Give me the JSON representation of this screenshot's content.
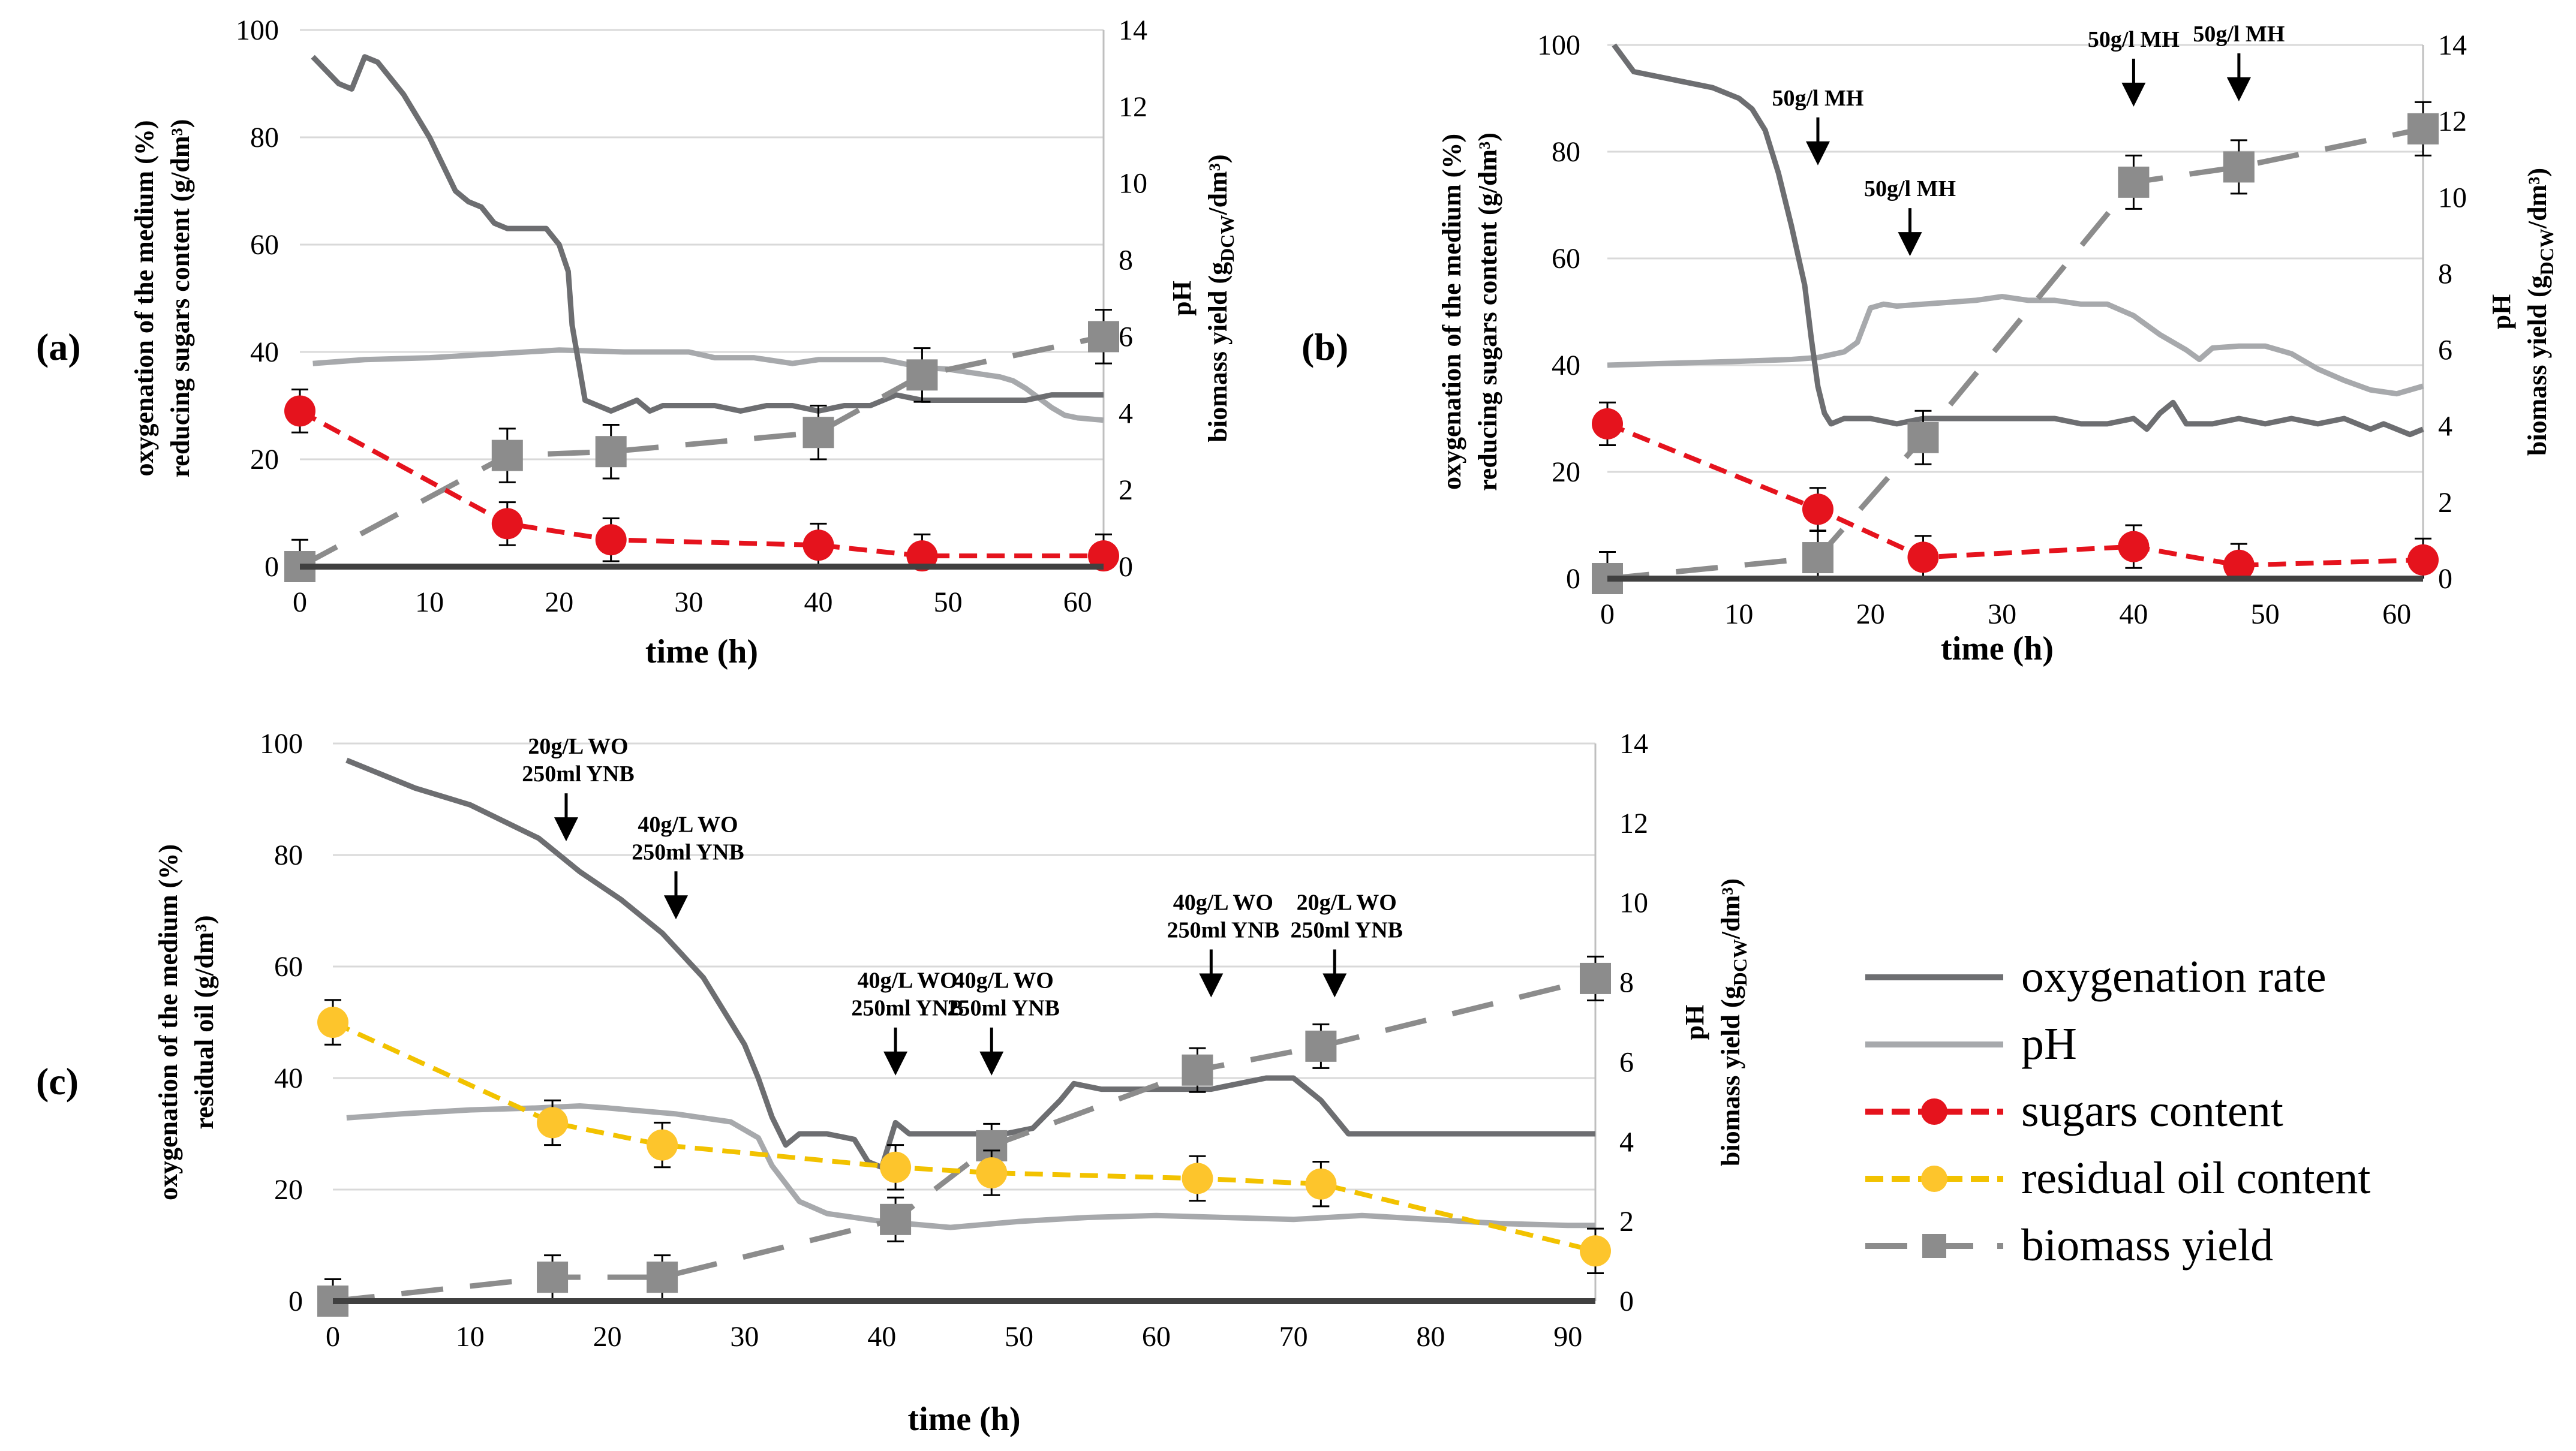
{
  "colors": {
    "oxygenation": "#6d6e71",
    "ph": "#a7a9ac",
    "sugars": "#e5131d",
    "oil": "#fdc52c",
    "oil_line": "#f2c200",
    "biomass": "#8c8c8c",
    "grid": "#d9d9d9"
  },
  "legend": {
    "items": [
      {
        "key": "oxygenation",
        "label": "oxygenation rate"
      },
      {
        "key": "ph",
        "label": "pH"
      },
      {
        "key": "sugars",
        "label": "sugars content"
      },
      {
        "key": "oil",
        "label": "residual oil content"
      },
      {
        "key": "biomass",
        "label": "biomass yield"
      }
    ]
  },
  "chart_data": [
    {
      "panel": "(a)",
      "type": "line",
      "xlabel": "time (h)",
      "ylabel_left": [
        "oxygenation of the medium (%)",
        "reducing sugars content (g/dm³)"
      ],
      "ylabel_right": [
        "pH",
        "biomass yield (g",
        "DCW",
        "/dm³)"
      ],
      "xlim": [
        0,
        62
      ],
      "ylim_left": [
        0,
        100
      ],
      "ylim_right": [
        0,
        14
      ],
      "xticks": [
        0,
        10,
        20,
        30,
        40,
        50,
        60
      ],
      "yticks_left": [
        0,
        20,
        40,
        60,
        80,
        100
      ],
      "yticks_right": [
        0,
        2,
        4,
        6,
        8,
        10,
        12,
        14
      ],
      "series": [
        {
          "name": "oxygenation rate",
          "key": "oxygenation",
          "axis": "left",
          "x": [
            1,
            3,
            4,
            5,
            6,
            8,
            10,
            12,
            13,
            14,
            15,
            16,
            17,
            18,
            19,
            20,
            20.7,
            21,
            21.5,
            22,
            23,
            24,
            25,
            26,
            27,
            28,
            30,
            32,
            34,
            36,
            38,
            40,
            42,
            44,
            46,
            48,
            50,
            52,
            54,
            56,
            58,
            60,
            62
          ],
          "y": [
            95,
            90,
            89,
            95,
            94,
            88,
            80,
            70,
            68,
            67,
            64,
            63,
            63,
            63,
            63,
            60,
            55,
            45,
            38,
            31,
            30,
            29,
            30,
            31,
            29,
            30,
            30,
            30,
            29,
            30,
            30,
            29,
            30,
            30,
            32,
            31,
            31,
            31,
            31,
            31,
            32,
            32,
            32
          ]
        },
        {
          "name": "pH",
          "key": "ph",
          "axis": "right",
          "x": [
            1,
            5,
            10,
            15,
            20,
            25,
            30,
            32,
            35,
            38,
            40,
            45,
            48,
            50,
            52,
            54,
            55,
            56,
            57,
            58,
            59,
            60,
            62
          ],
          "y": [
            5.3,
            5.4,
            5.45,
            5.55,
            5.65,
            5.6,
            5.6,
            5.45,
            5.45,
            5.3,
            5.4,
            5.4,
            5.2,
            5.15,
            5.05,
            4.95,
            4.85,
            4.65,
            4.4,
            4.15,
            3.95,
            3.88,
            3.82
          ]
        },
        {
          "name": "sugars content",
          "key": "sugars",
          "axis": "left",
          "markers": "circle",
          "x": [
            0,
            16,
            24,
            40,
            48,
            62
          ],
          "y": [
            29,
            8,
            5,
            4,
            2,
            2
          ],
          "err": [
            4,
            4,
            4,
            4,
            4,
            4
          ]
        },
        {
          "name": "biomass yield",
          "key": "biomass",
          "axis": "right",
          "markers": "square",
          "x": [
            0,
            16,
            24,
            40,
            48,
            62
          ],
          "y": [
            0,
            2.9,
            3.0,
            3.5,
            5.0,
            6.0
          ],
          "err": [
            0.7,
            0.7,
            0.7,
            0.7,
            0.7,
            0.7
          ]
        }
      ],
      "annotations": []
    },
    {
      "panel": "(b)",
      "type": "line",
      "xlabel": "time (h)",
      "ylabel_left": [
        "oxygenation of the medium (%)",
        "reducing sugars content (g/dm³)"
      ],
      "ylabel_right": [
        "pH",
        "biomass yield (g",
        "DCW",
        "/dm³)"
      ],
      "xlim": [
        0,
        62
      ],
      "ylim_left": [
        0,
        100
      ],
      "ylim_right": [
        0,
        14
      ],
      "xticks": [
        0,
        10,
        20,
        30,
        40,
        50,
        60
      ],
      "yticks_left": [
        0,
        20,
        40,
        60,
        80,
        100
      ],
      "yticks_right": [
        0,
        2,
        4,
        6,
        8,
        10,
        12,
        14
      ],
      "series": [
        {
          "name": "oxygenation rate",
          "key": "oxygenation",
          "axis": "left",
          "x": [
            0.5,
            2,
            4,
            6,
            8,
            10,
            11,
            12,
            13,
            14,
            15,
            15.5,
            16,
            16.5,
            17,
            18,
            20,
            22,
            24,
            26,
            28,
            30,
            32,
            34,
            36,
            38,
            40,
            41,
            42,
            43,
            44,
            46,
            48,
            50,
            52,
            54,
            56,
            58,
            59,
            60,
            61,
            62
          ],
          "y": [
            100,
            95,
            94,
            93,
            92,
            90,
            88,
            84,
            76,
            66,
            55,
            45,
            36,
            31,
            29,
            30,
            30,
            29,
            30,
            30,
            30,
            30,
            30,
            30,
            29,
            29,
            30,
            28,
            31,
            33,
            29,
            29,
            30,
            29,
            30,
            29,
            30,
            28,
            29,
            28,
            27,
            28
          ]
        },
        {
          "name": "pH",
          "key": "ph",
          "axis": "right",
          "x": [
            0,
            5,
            10,
            14,
            16,
            18,
            19,
            20,
            21,
            22,
            24,
            26,
            28,
            30,
            32,
            34,
            36,
            38,
            40,
            42,
            44,
            45,
            46,
            48,
            50,
            52,
            54,
            56,
            58,
            60,
            62
          ],
          "y": [
            5.6,
            5.65,
            5.7,
            5.75,
            5.8,
            5.95,
            6.2,
            7.1,
            7.2,
            7.15,
            7.2,
            7.25,
            7.3,
            7.4,
            7.3,
            7.3,
            7.2,
            7.2,
            6.9,
            6.4,
            6.0,
            5.75,
            6.05,
            6.1,
            6.1,
            5.9,
            5.5,
            5.2,
            4.95,
            4.85,
            5.05
          ]
        },
        {
          "name": "sugars content",
          "key": "sugars",
          "axis": "left",
          "markers": "circle",
          "x": [
            0,
            16,
            24,
            40,
            48,
            62
          ],
          "y": [
            29,
            13,
            4,
            6,
            2.5,
            3.5
          ],
          "err": [
            4,
            4,
            4,
            4,
            4,
            4
          ]
        },
        {
          "name": "biomass yield",
          "key": "biomass",
          "axis": "right",
          "markers": "square",
          "x": [
            0,
            16,
            24,
            40,
            48,
            62
          ],
          "y": [
            0,
            0.55,
            3.7,
            10.4,
            10.8,
            11.8
          ],
          "err": [
            0.7,
            0.7,
            0.7,
            0.7,
            0.7,
            0.7
          ]
        }
      ],
      "annotations": [
        {
          "x": 16,
          "y": 78,
          "text": [
            "50g/l MH"
          ]
        },
        {
          "x": 23,
          "y": 61,
          "text": [
            "50g/l MH"
          ]
        },
        {
          "x": 40,
          "y": 89,
          "text": [
            "50g/l MH"
          ]
        },
        {
          "x": 48,
          "y": 90,
          "text": [
            "50g/l MH"
          ]
        }
      ]
    },
    {
      "panel": "(c)",
      "type": "line",
      "xlabel": "time (h)",
      "ylabel_left": [
        "oxygenation of the medium (%)",
        "residual oil (g/dm³)"
      ],
      "ylabel_right": [
        "pH",
        "biomass yield (g",
        "DCW",
        "/dm³)"
      ],
      "xlim": [
        0,
        92
      ],
      "ylim_left": [
        0,
        100
      ],
      "ylim_right": [
        0,
        14
      ],
      "xticks": [
        0,
        10,
        20,
        30,
        40,
        50,
        60,
        70,
        80,
        90
      ],
      "yticks_left": [
        0,
        20,
        40,
        60,
        80,
        100
      ],
      "yticks_right": [
        0,
        2,
        4,
        6,
        8,
        10,
        12,
        14
      ],
      "series": [
        {
          "name": "oxygenation rate",
          "key": "oxygenation",
          "axis": "left",
          "x": [
            1,
            3,
            6,
            10,
            15,
            18,
            21,
            24,
            27,
            30,
            31,
            32,
            33,
            34,
            36,
            38,
            39,
            40,
            41,
            42,
            46,
            49,
            51,
            53,
            54,
            56,
            60,
            64,
            68,
            70,
            71,
            72,
            73,
            74,
            75,
            80,
            85,
            90,
            92
          ],
          "y": [
            97,
            95,
            92,
            89,
            83,
            77,
            72,
            66,
            58,
            46,
            40,
            33,
            28,
            30,
            30,
            29,
            25,
            24,
            32,
            30,
            30,
            30,
            31,
            36,
            39,
            38,
            38,
            38,
            40,
            40,
            38,
            36,
            33,
            30,
            30,
            30,
            30,
            30,
            30
          ]
        },
        {
          "name": "pH",
          "key": "ph",
          "axis": "right",
          "x": [
            1,
            5,
            10,
            15,
            18,
            20,
            25,
            29,
            31,
            32,
            34,
            36,
            40,
            45,
            50,
            55,
            60,
            65,
            70,
            75,
            80,
            85,
            90,
            92
          ],
          "y": [
            4.6,
            4.7,
            4.8,
            4.85,
            4.9,
            4.85,
            4.7,
            4.5,
            4.1,
            3.4,
            2.5,
            2.2,
            2.0,
            1.85,
            2.0,
            2.1,
            2.15,
            2.1,
            2.05,
            2.15,
            2.05,
            1.95,
            1.9,
            1.9
          ]
        },
        {
          "name": "residual oil content",
          "key": "oil",
          "axis": "left",
          "markers": "circle",
          "x": [
            0,
            16,
            24,
            41,
            48,
            63,
            72,
            92
          ],
          "y": [
            50,
            32,
            28,
            24,
            23,
            22,
            21,
            9
          ],
          "err": [
            4,
            4,
            4,
            4,
            4,
            4,
            4,
            4
          ]
        },
        {
          "name": "biomass yield",
          "key": "biomass",
          "axis": "right",
          "markers": "square",
          "x": [
            0,
            16,
            24,
            41,
            48,
            63,
            72,
            92
          ],
          "y": [
            0,
            0.6,
            0.6,
            2.05,
            3.9,
            5.8,
            6.4,
            8.1
          ],
          "err": [
            0.55,
            0.55,
            0.55,
            0.55,
            0.55,
            0.55,
            0.55,
            0.55
          ]
        }
      ],
      "annotations": [
        {
          "x": 17,
          "y": 83,
          "text": [
            "20g/L WO",
            "250ml YNB"
          ]
        },
        {
          "x": 25,
          "y": 69,
          "text": [
            "40g/L WO",
            "250ml YNB"
          ]
        },
        {
          "x": 41,
          "y": 41,
          "text": [
            "40g/L WO",
            "250ml YNB"
          ]
        },
        {
          "x": 48,
          "y": 41,
          "text": [
            "40g/L WO",
            "250ml YNB"
          ]
        },
        {
          "x": 64,
          "y": 55,
          "text": [
            "40g/L WO",
            "250ml YNB"
          ]
        },
        {
          "x": 73,
          "y": 55,
          "text": [
            "20g/L WO",
            "250ml YNB"
          ]
        }
      ]
    }
  ]
}
